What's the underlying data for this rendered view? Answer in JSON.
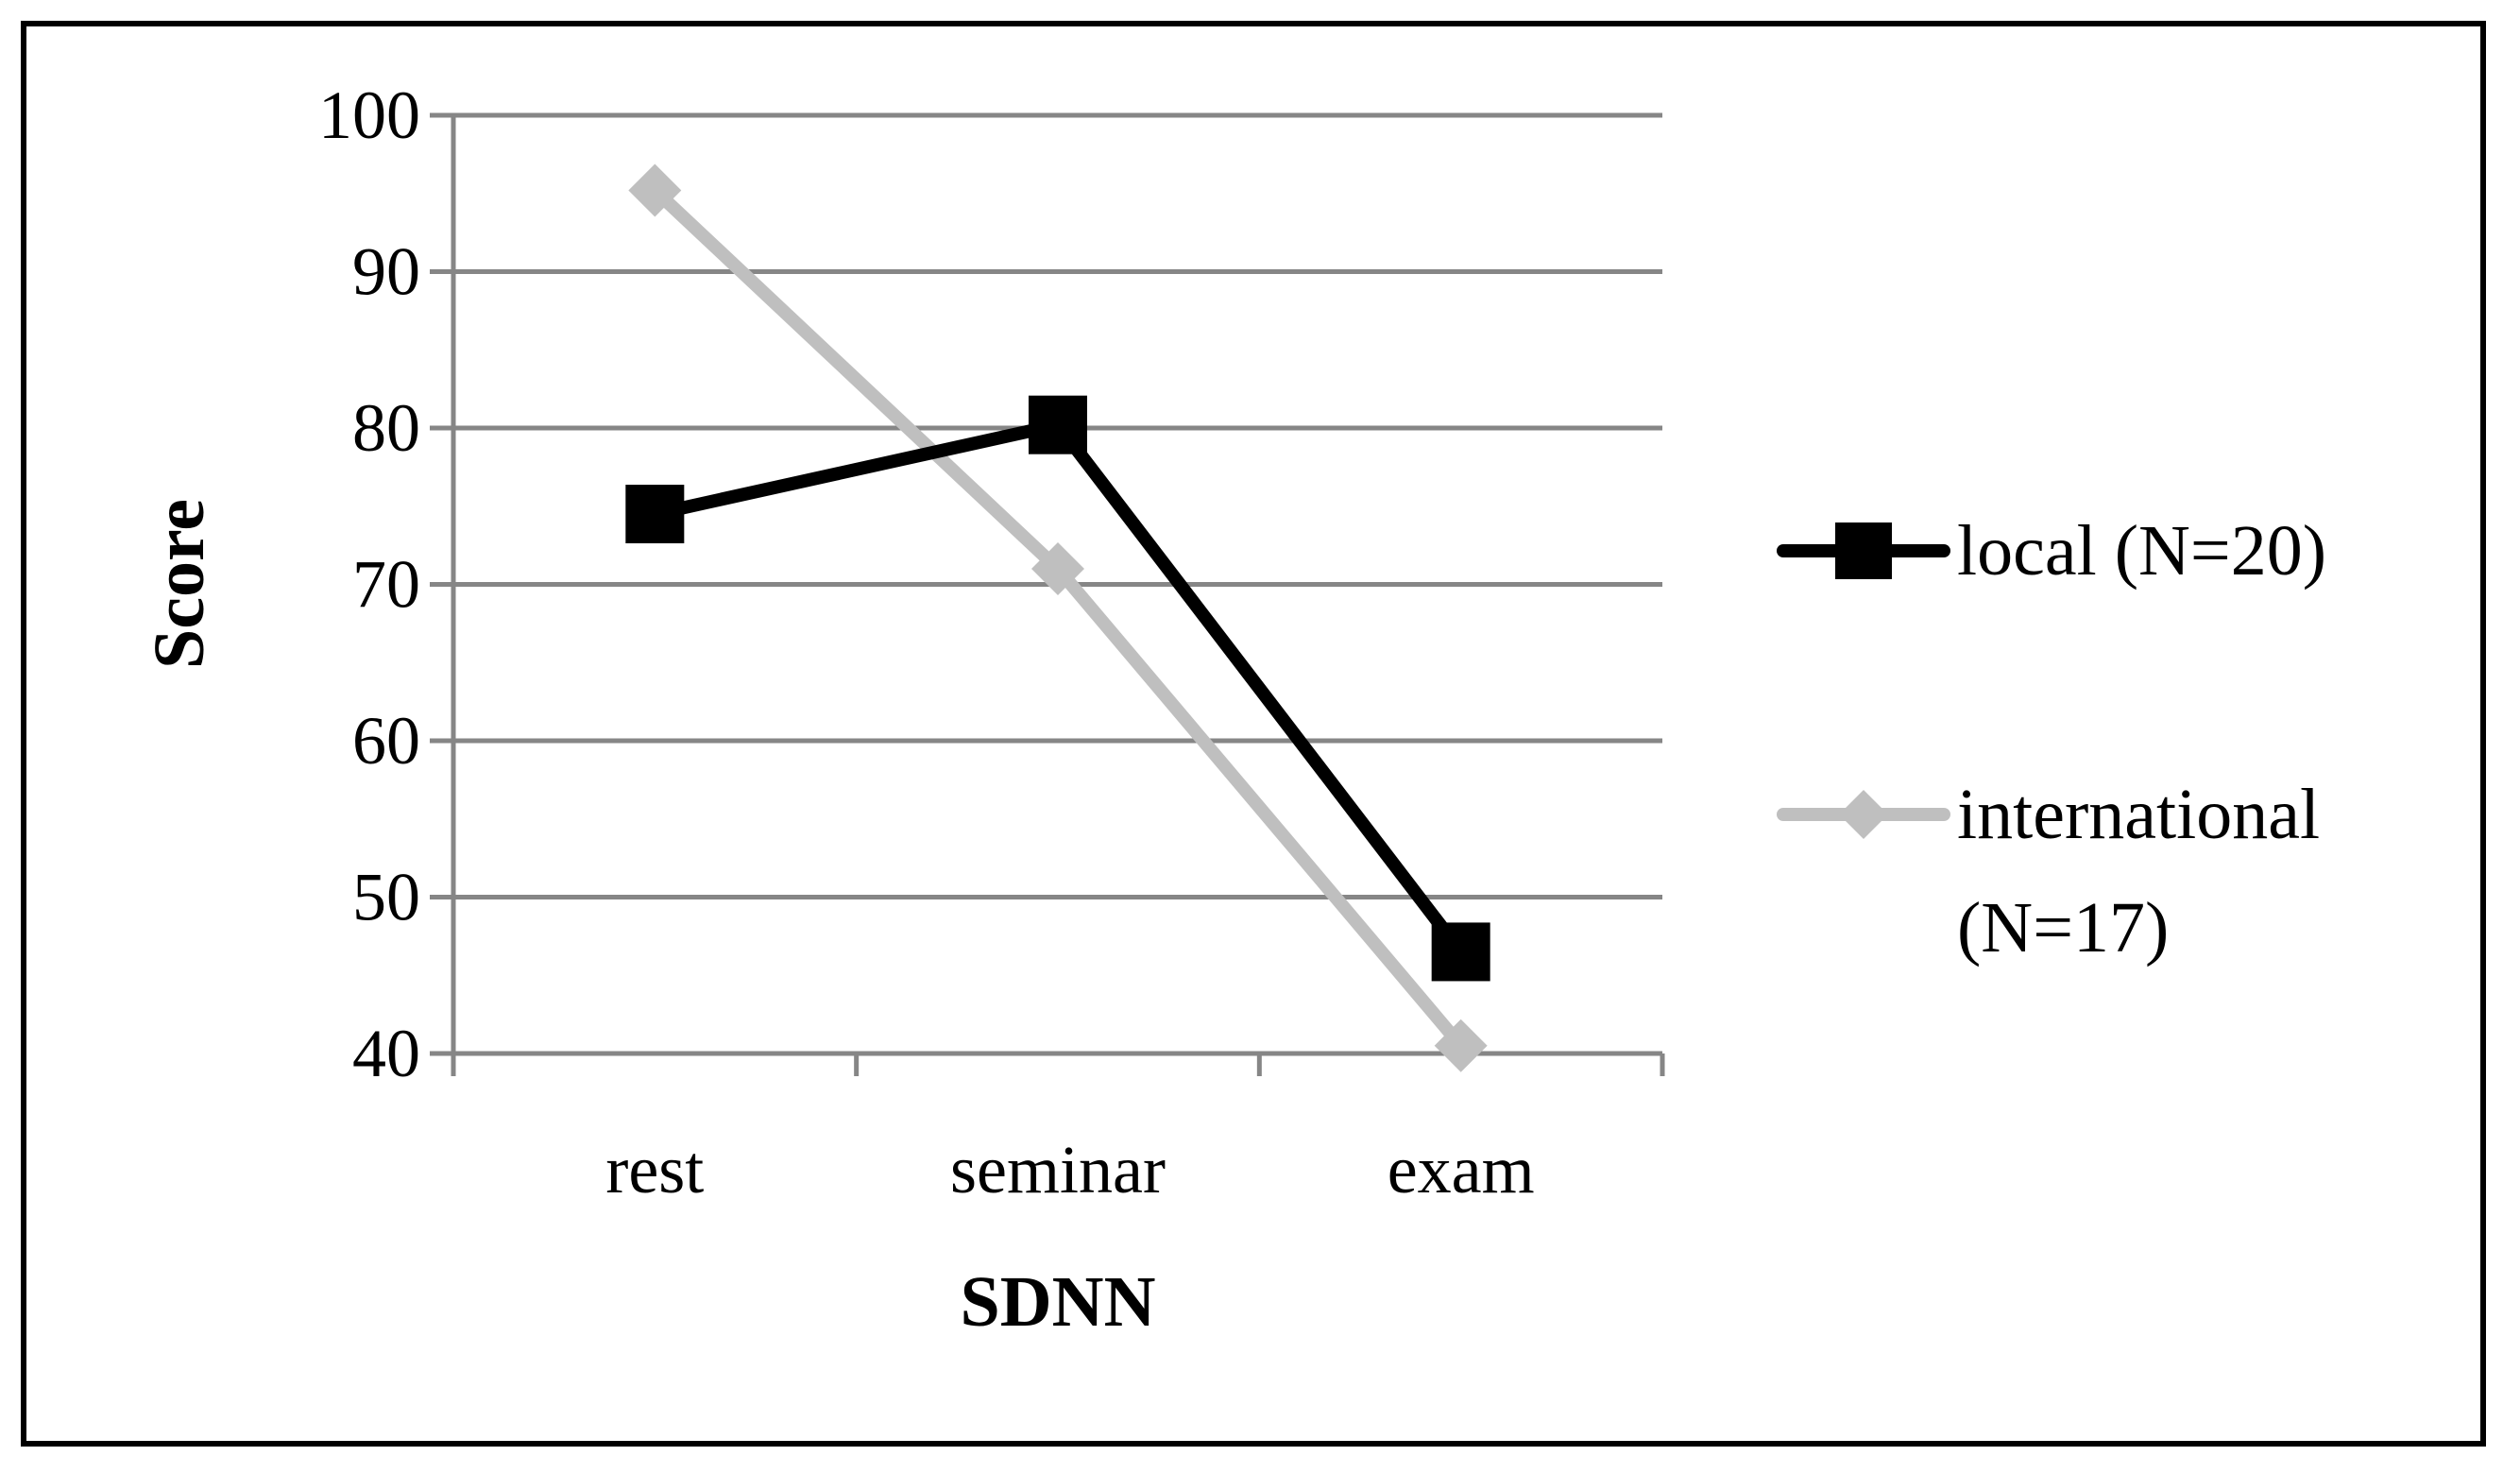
{
  "chart_data": {
    "type": "line",
    "title": "",
    "xlabel": "SDNN",
    "ylabel": "Score",
    "categories": [
      "rest",
      "seminar",
      "exam"
    ],
    "ylim": [
      40,
      100
    ],
    "yticks": [
      "40",
      "50",
      "60",
      "70",
      "80",
      "90",
      "100"
    ],
    "grid": true,
    "legend_position": "right",
    "series": [
      {
        "name": "local (N=20)",
        "name_lines": [
          "local (N=20)"
        ],
        "marker": "square",
        "color": "#000000",
        "values": [
          74.5,
          80.2,
          46.5
        ]
      },
      {
        "name": "international (N=17)",
        "name_lines": [
          "international",
          "(N=17)"
        ],
        "marker": "diamond",
        "color": "#bfbfbf",
        "values": [
          95.2,
          71.0,
          40.5
        ]
      }
    ]
  }
}
